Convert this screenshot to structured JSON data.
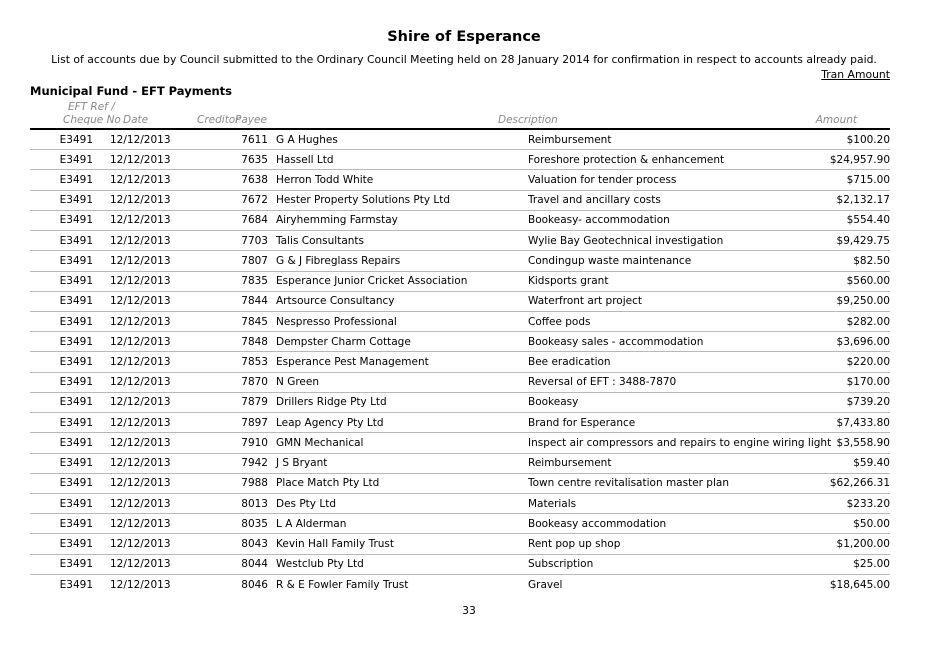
{
  "header": {
    "title": "Shire of Esperance",
    "subtitle": "List of accounts due by Council submitted to the Ordinary Council Meeting held on 28 January 2014 for confirmation in respect to accounts already paid.",
    "tran_amount_label": "Tran Amount"
  },
  "section": {
    "title": "Municipal Fund - EFT Payments"
  },
  "table": {
    "columns": {
      "ref_line1": "EFT Ref /",
      "ref_line2": "Cheque No",
      "date": "Date",
      "creditor": "Creditor",
      "payee": "Payee",
      "description": "Description",
      "amount": "Amount"
    },
    "rows": [
      {
        "ref": "E3491",
        "date": "12/12/2013",
        "creditor": "7611",
        "payee": "G A Hughes",
        "description": "Reimbursement",
        "amount": "$100.20"
      },
      {
        "ref": "E3491",
        "date": "12/12/2013",
        "creditor": "7635",
        "payee": "Hassell Ltd",
        "description": "Foreshore protection & enhancement",
        "amount": "$24,957.90"
      },
      {
        "ref": "E3491",
        "date": "12/12/2013",
        "creditor": "7638",
        "payee": "Herron Todd White",
        "description": "Valuation for tender process",
        "amount": "$715.00"
      },
      {
        "ref": "E3491",
        "date": "12/12/2013",
        "creditor": "7672",
        "payee": "Hester Property Solutions Pty Ltd",
        "description": "Travel and ancillary costs",
        "amount": "$2,132.17"
      },
      {
        "ref": "E3491",
        "date": "12/12/2013",
        "creditor": "7684",
        "payee": "Airyhemming Farmstay",
        "description": "Bookeasy- accommodation",
        "amount": "$554.40"
      },
      {
        "ref": "E3491",
        "date": "12/12/2013",
        "creditor": "7703",
        "payee": "Talis Consultants",
        "description": "Wylie Bay Geotechnical investigation",
        "amount": "$9,429.75"
      },
      {
        "ref": "E3491",
        "date": "12/12/2013",
        "creditor": "7807",
        "payee": "G & J Fibreglass Repairs",
        "description": "Condingup waste maintenance",
        "amount": "$82.50"
      },
      {
        "ref": "E3491",
        "date": "12/12/2013",
        "creditor": "7835",
        "payee": "Esperance Junior Cricket Association",
        "description": "Kidsports grant",
        "amount": "$560.00"
      },
      {
        "ref": "E3491",
        "date": "12/12/2013",
        "creditor": "7844",
        "payee": "Artsource Consultancy",
        "description": "Waterfront art project",
        "amount": "$9,250.00"
      },
      {
        "ref": "E3491",
        "date": "12/12/2013",
        "creditor": "7845",
        "payee": "Nespresso Professional",
        "description": "Coffee pods",
        "amount": "$282.00"
      },
      {
        "ref": "E3491",
        "date": "12/12/2013",
        "creditor": "7848",
        "payee": "Dempster Charm Cottage",
        "description": "Bookeasy sales - accommodation",
        "amount": "$3,696.00"
      },
      {
        "ref": "E3491",
        "date": "12/12/2013",
        "creditor": "7853",
        "payee": "Esperance Pest Management",
        "description": "Bee eradication",
        "amount": "$220.00"
      },
      {
        "ref": "E3491",
        "date": "12/12/2013",
        "creditor": "7870",
        "payee": "N Green",
        "description": "Reversal of EFT : 3488-7870",
        "amount": "$170.00"
      },
      {
        "ref": "E3491",
        "date": "12/12/2013",
        "creditor": "7879",
        "payee": "Drillers Ridge Pty Ltd",
        "description": "Bookeasy",
        "amount": "$739.20"
      },
      {
        "ref": "E3491",
        "date": "12/12/2013",
        "creditor": "7897",
        "payee": "Leap Agency Pty Ltd",
        "description": "Brand for Esperance",
        "amount": "$7,433.80"
      },
      {
        "ref": "E3491",
        "date": "12/12/2013",
        "creditor": "7910",
        "payee": "GMN Mechanical",
        "description": "Inspect air compressors and repairs to engine wiring light",
        "amount": "$3,558.90"
      },
      {
        "ref": "E3491",
        "date": "12/12/2013",
        "creditor": "7942",
        "payee": "J S Bryant",
        "description": "Reimbursement",
        "amount": "$59.40"
      },
      {
        "ref": "E3491",
        "date": "12/12/2013",
        "creditor": "7988",
        "payee": "Place Match Pty Ltd",
        "description": "Town centre revitalisation master plan",
        "amount": "$62,266.31"
      },
      {
        "ref": "E3491",
        "date": "12/12/2013",
        "creditor": "8013",
        "payee": "Des Pty Ltd",
        "description": "Materials",
        "amount": "$233.20"
      },
      {
        "ref": "E3491",
        "date": "12/12/2013",
        "creditor": "8035",
        "payee": "L A Alderman",
        "description": "Bookeasy accommodation",
        "amount": "$50.00"
      },
      {
        "ref": "E3491",
        "date": "12/12/2013",
        "creditor": "8043",
        "payee": "Kevin Hall Family Trust",
        "description": "Rent pop up shop",
        "amount": "$1,200.00"
      },
      {
        "ref": "E3491",
        "date": "12/12/2013",
        "creditor": "8044",
        "payee": "Westclub Pty Ltd",
        "description": "Subscription",
        "amount": "$25.00"
      },
      {
        "ref": "E3491",
        "date": "12/12/2013",
        "creditor": "8046",
        "payee": "R & E Fowler Family Trust",
        "description": "Gravel",
        "amount": "$18,645.00"
      }
    ]
  },
  "footer": {
    "page_number": "33"
  }
}
